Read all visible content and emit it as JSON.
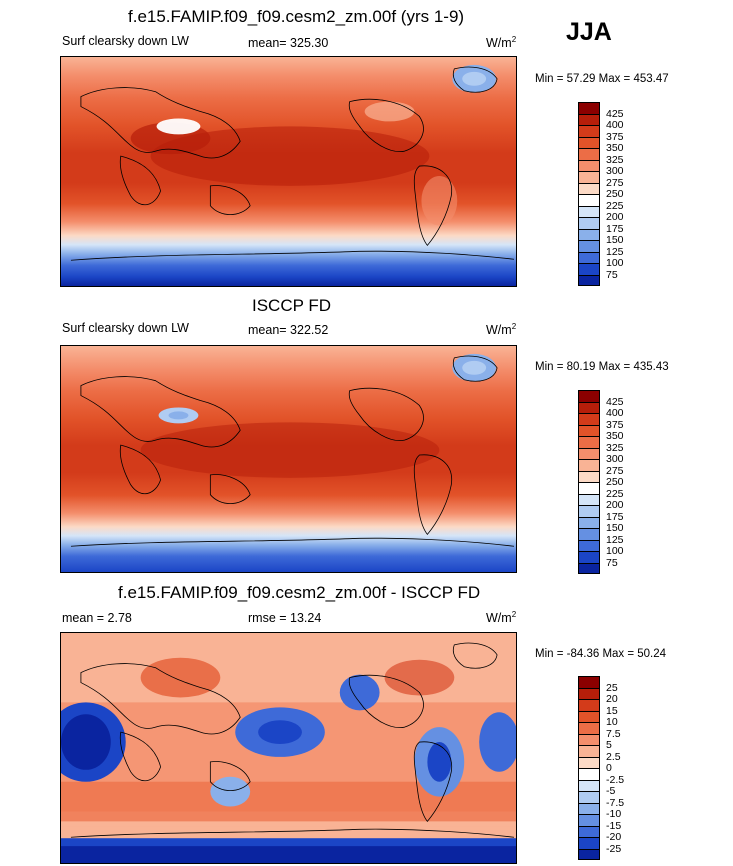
{
  "season": "JJA",
  "panels": [
    {
      "title": "f.e15.FAMIP.f09_f09.cesm2_zm.00f (yrs 1-9)",
      "left_label": "Surf clearsky down LW",
      "center_label": "mean= 325.30",
      "units": "W/m",
      "units_exp": "2",
      "min_max": "Min =  57.29 Max = 453.47",
      "colorbar_labels": [
        "425",
        "400",
        "375",
        "350",
        "325",
        "300",
        "275",
        "250",
        "225",
        "200",
        "175",
        "150",
        "125",
        "100",
        "75"
      ]
    },
    {
      "title": "ISCCP FD",
      "left_label": "Surf clearsky down LW",
      "center_label": "mean= 322.52",
      "units": "W/m",
      "units_exp": "2",
      "min_max": "Min =  80.19 Max = 435.43",
      "colorbar_labels": [
        "425",
        "400",
        "375",
        "350",
        "325",
        "300",
        "275",
        "250",
        "225",
        "200",
        "175",
        "150",
        "125",
        "100",
        "75"
      ]
    },
    {
      "title": "f.e15.FAMIP.f09_f09.cesm2_zm.00f - ISCCP FD",
      "left_label": "mean =   2.78",
      "center_label": "rmse =  13.24",
      "units": "W/m",
      "units_exp": "2",
      "min_max": "Min = -84.36 Max =  50.24",
      "colorbar_labels": [
        "25",
        "20",
        "15",
        "10",
        "7.5",
        "5",
        "2.5",
        "0",
        "-2.5",
        "-5",
        "-7.5",
        "-10",
        "-15",
        "-20",
        "-25"
      ]
    }
  ],
  "colors": {
    "abs_scale": [
      "#8b0000",
      "#b61e0a",
      "#d33b1a",
      "#e25329",
      "#ec6d46",
      "#f48e6c",
      "#f9b395",
      "#fcdac6",
      "#ffffff",
      "#d5e5f8",
      "#b0ccf2",
      "#8ab0ea",
      "#6590e2",
      "#3e6ad8",
      "#1b45c6",
      "#0a24a0"
    ],
    "diff_scale": [
      "#8b0000",
      "#b61e0a",
      "#d33b1a",
      "#e25329",
      "#ec6d46",
      "#f48e6c",
      "#f9b395",
      "#fcdac6",
      "#ffffff",
      "#d5e5f8",
      "#b0ccf2",
      "#8ab0ea",
      "#6590e2",
      "#3e6ad8",
      "#1b45c6",
      "#0a24a0"
    ]
  },
  "chart_data": [
    {
      "type": "heatmap",
      "title": "f.e15.FAMIP.f09_f09.cesm2_zm.00f (yrs 1-9)",
      "variable": "Surf clearsky down LW",
      "units": "W/m2",
      "mean": 325.3,
      "min": 57.29,
      "max": 453.47,
      "levels": [
        75,
        100,
        125,
        150,
        175,
        200,
        225,
        250,
        275,
        300,
        325,
        350,
        375,
        400,
        425
      ]
    },
    {
      "type": "heatmap",
      "title": "ISCCP FD",
      "variable": "Surf clearsky down LW",
      "units": "W/m2",
      "mean": 322.52,
      "min": 80.19,
      "max": 435.43,
      "levels": [
        75,
        100,
        125,
        150,
        175,
        200,
        225,
        250,
        275,
        300,
        325,
        350,
        375,
        400,
        425
      ]
    },
    {
      "type": "heatmap",
      "title": "f.e15.FAMIP.f09_f09.cesm2_zm.00f - ISCCP FD",
      "units": "W/m2",
      "mean": 2.78,
      "rmse": 13.24,
      "min": -84.36,
      "max": 50.24,
      "levels": [
        -25,
        -20,
        -15,
        -10,
        -7.5,
        -5,
        -2.5,
        0,
        2.5,
        5,
        7.5,
        10,
        15,
        20,
        25
      ]
    }
  ]
}
